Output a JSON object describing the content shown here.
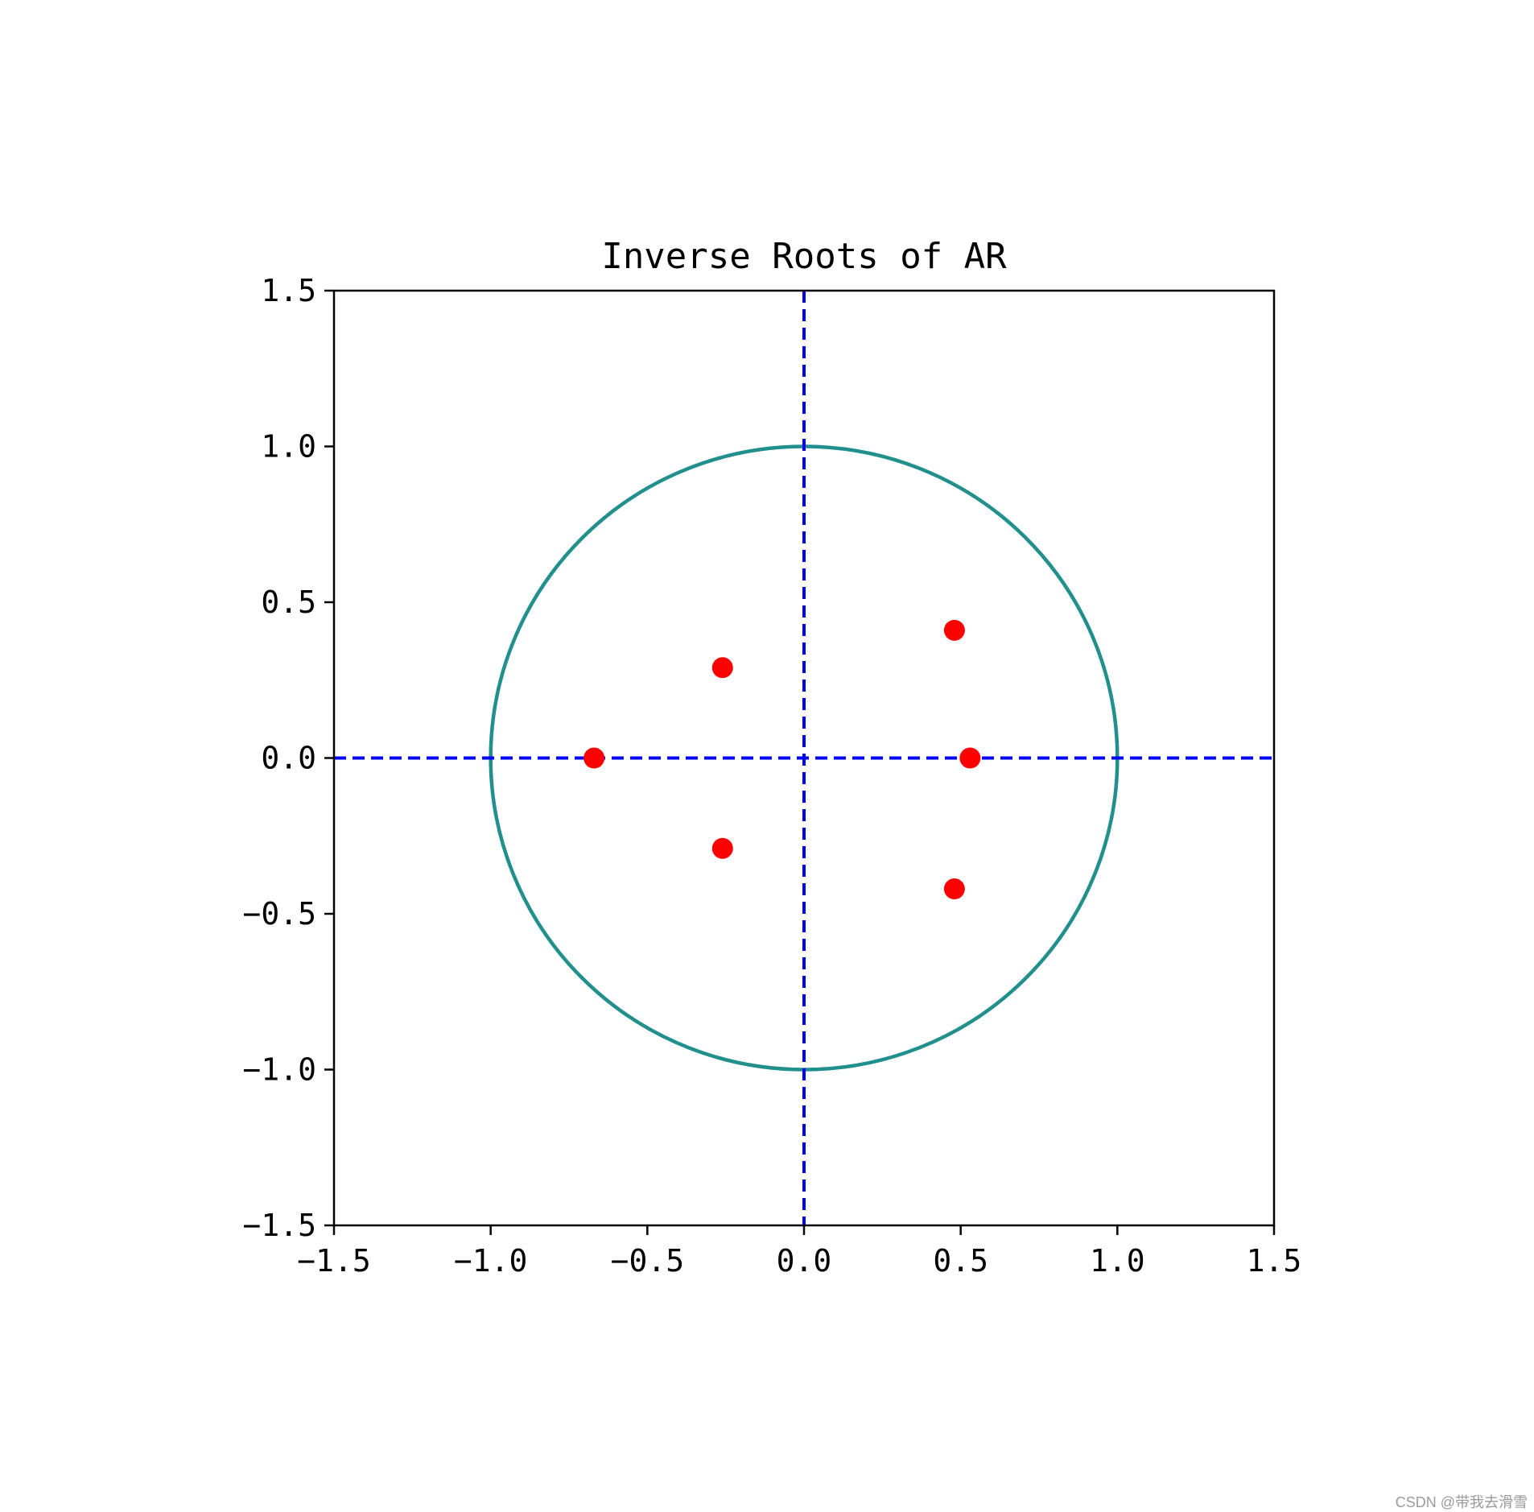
{
  "chart_data": {
    "type": "scatter",
    "title": "Inverse Roots of AR",
    "xlabel": "",
    "ylabel": "",
    "xlim": [
      -1.5,
      1.5
    ],
    "ylim": [
      -1.5,
      1.5
    ],
    "xticks": [
      "−1.5",
      "−1.0",
      "−0.5",
      "0.0",
      "0.5",
      "1.0",
      "1.5"
    ],
    "yticks": [
      "1.5",
      "1.0",
      "0.5",
      "0.0",
      "−0.5",
      "−1.0",
      "−1.5"
    ],
    "xtick_values": [
      -1.5,
      -1.0,
      -0.5,
      0.0,
      0.5,
      1.0,
      1.5
    ],
    "ytick_values": [
      1.5,
      1.0,
      0.5,
      0.0,
      -0.5,
      -1.0,
      -1.5
    ],
    "grid": false,
    "unit_circle": {
      "radius": 1.0,
      "color": "#21908d"
    },
    "reference_lines": {
      "x": 0.0,
      "y": 0.0,
      "style": "dashed",
      "color": "#0000ff"
    },
    "series": [
      {
        "color": "#ff0000",
        "points": [
          {
            "x": -0.67,
            "y": 0.0
          },
          {
            "x": -0.26,
            "y": 0.29
          },
          {
            "x": -0.26,
            "y": -0.29
          },
          {
            "x": 0.48,
            "y": 0.41
          },
          {
            "x": 0.48,
            "y": -0.42
          },
          {
            "x": 0.53,
            "y": 0.0
          }
        ]
      }
    ]
  },
  "watermark": "CSDN @带我去滑雪"
}
